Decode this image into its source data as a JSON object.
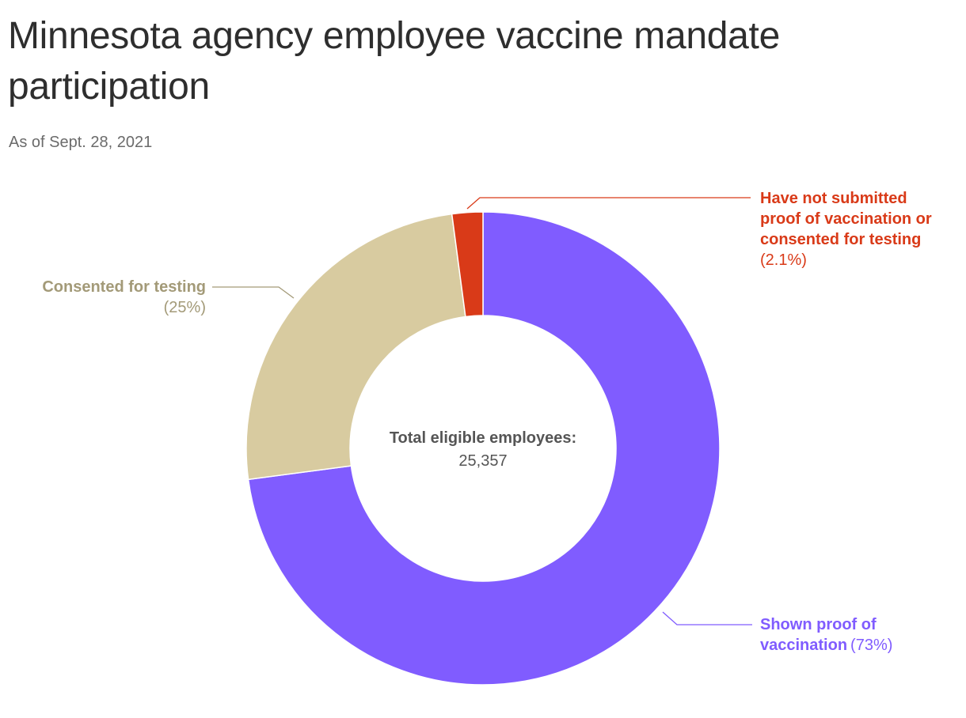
{
  "title": "Minnesota agency employee vaccine mandate participation",
  "subtitle": "As of Sept. 28, 2021",
  "chart_data": {
    "type": "pie",
    "donut": true,
    "title": "Minnesota agency employee vaccine mandate participation",
    "subtitle": "As of Sept. 28, 2021",
    "center_label": "Total eligible employees:",
    "center_value": "25,357",
    "slices": [
      {
        "key": "vaccinated",
        "label_lines": [
          "Shown proof of",
          "vaccination"
        ],
        "pct_text": "(73%)",
        "value": 72.9,
        "color": "#805cff"
      },
      {
        "key": "testing",
        "label_lines": [
          "Consented for testing"
        ],
        "pct_text": "(25%)",
        "value": 25.0,
        "color": "#d8cba0"
      },
      {
        "key": "not_submitted",
        "label_lines": [
          "Have not submitted",
          "proof of vaccination or",
          "consented for testing"
        ],
        "pct_text": "(2.1%)",
        "value": 2.1,
        "color": "#d93a18"
      }
    ],
    "label_colors": {
      "vaccinated": "#805cff",
      "testing": "#a39a78",
      "not_submitted": "#d93a18"
    }
  }
}
